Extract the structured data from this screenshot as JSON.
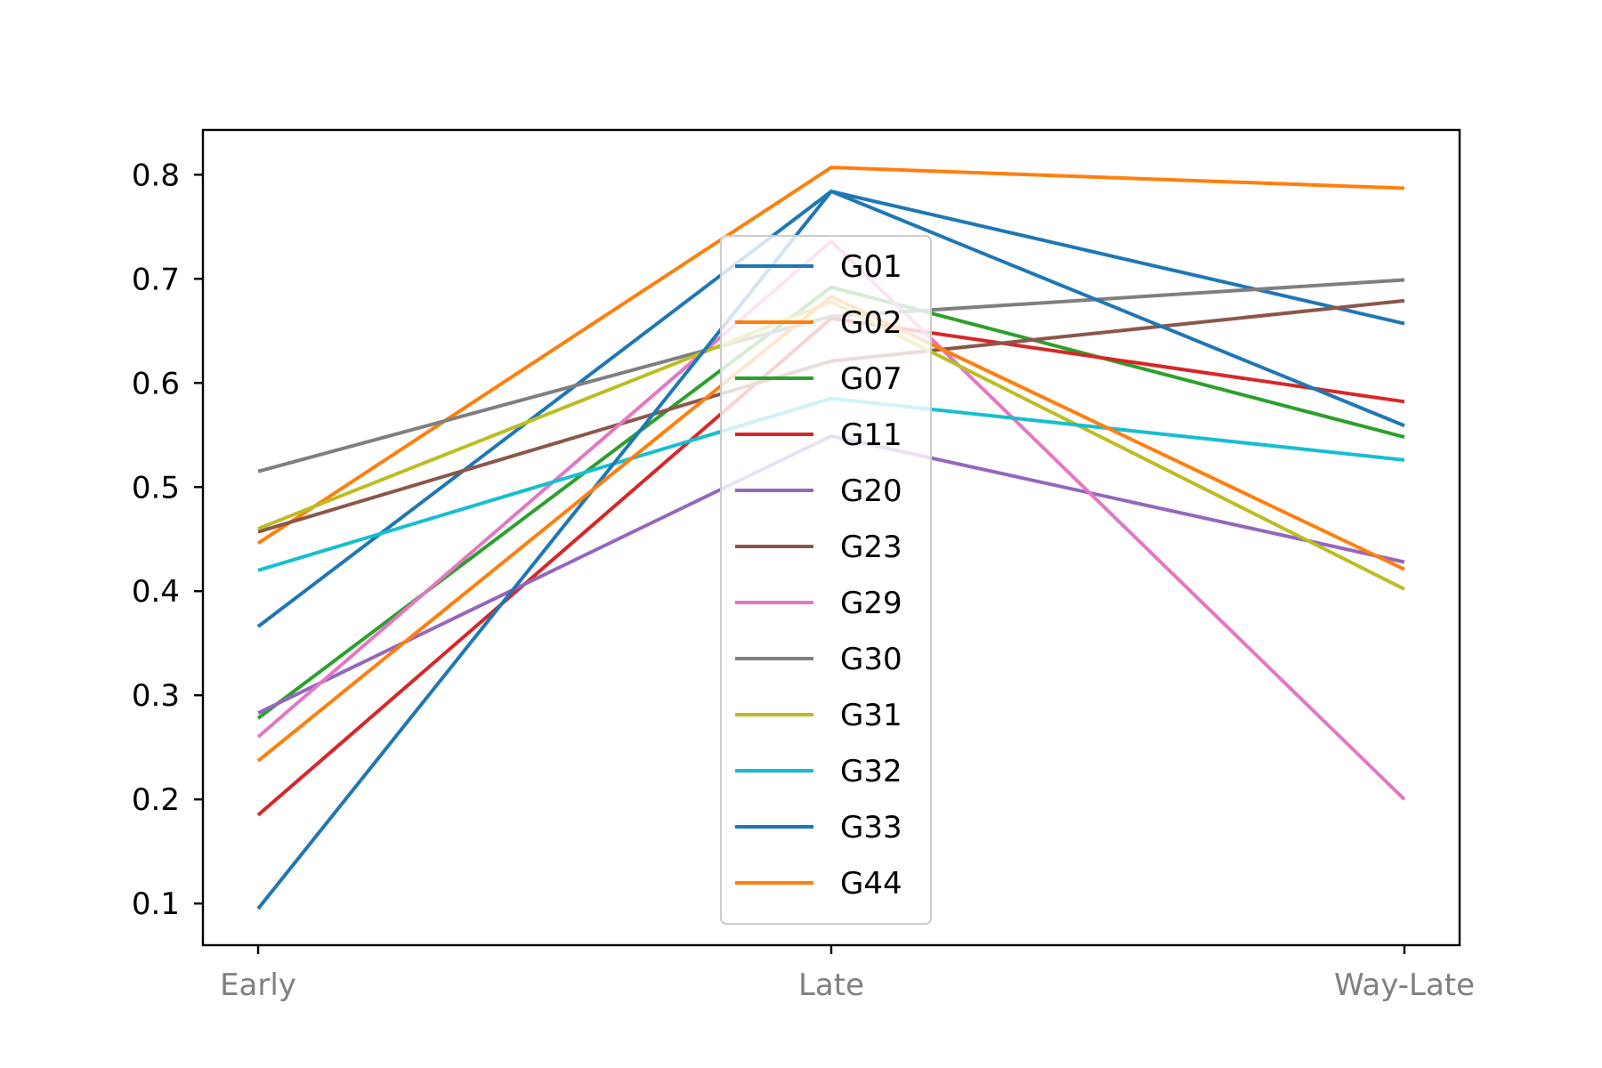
{
  "chart_data": {
    "type": "line",
    "categories": [
      "Early",
      "Late",
      "Way-Late"
    ],
    "yticks": [
      "0.1",
      "0.2",
      "0.3",
      "0.4",
      "0.5",
      "0.6",
      "0.7",
      "0.8"
    ],
    "ylim": [
      0.06,
      0.843
    ],
    "grid": false,
    "legend_position": "center",
    "series": [
      {
        "name": "G01",
        "color": "#1f77b4",
        "values": [
          0.366,
          0.784,
          0.657
        ]
      },
      {
        "name": "G02",
        "color": "#ff7f0e",
        "values": [
          0.446,
          0.807,
          0.787
        ]
      },
      {
        "name": "G07",
        "color": "#2ca02c",
        "values": [
          0.278,
          0.692,
          0.548
        ]
      },
      {
        "name": "G11",
        "color": "#d62728",
        "values": [
          0.185,
          0.662,
          0.582
        ]
      },
      {
        "name": "G20",
        "color": "#9467bd",
        "values": [
          0.283,
          0.549,
          0.428
        ]
      },
      {
        "name": "G23",
        "color": "#8c564b",
        "values": [
          0.457,
          0.621,
          0.679
        ]
      },
      {
        "name": "G29",
        "color": "#e377c2",
        "values": [
          0.26,
          0.736,
          0.2
        ]
      },
      {
        "name": "G30",
        "color": "#7f7f7f",
        "values": [
          0.515,
          0.664,
          0.699
        ]
      },
      {
        "name": "G31",
        "color": "#bcbd22",
        "values": [
          0.46,
          0.678,
          0.402
        ]
      },
      {
        "name": "G32",
        "color": "#17becf",
        "values": [
          0.42,
          0.585,
          0.526
        ]
      },
      {
        "name": "G33",
        "color": "#1f77b4",
        "values": [
          0.095,
          0.784,
          0.559
        ]
      },
      {
        "name": "G44",
        "color": "#ff7f0e",
        "values": [
          0.237,
          0.683,
          0.421
        ]
      }
    ]
  }
}
